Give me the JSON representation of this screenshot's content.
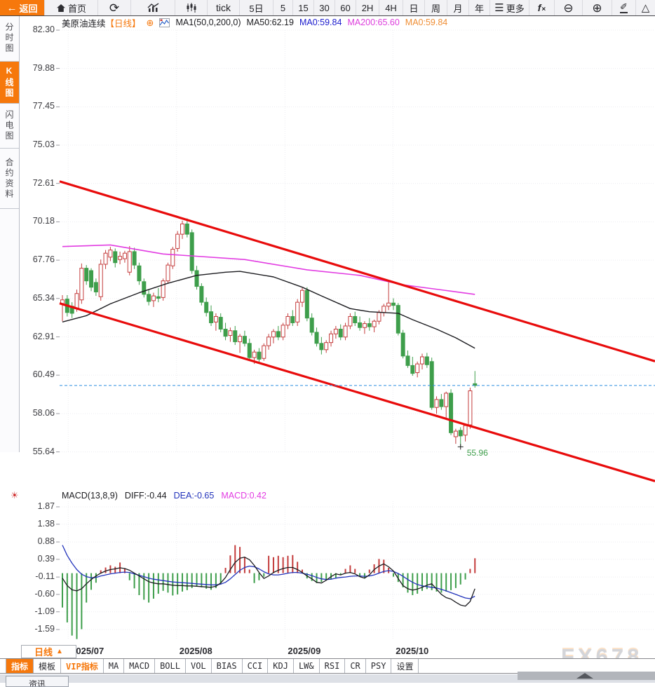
{
  "toolbar": {
    "items": [
      {
        "id": "back",
        "label": "返回"
      },
      {
        "id": "home",
        "label": "首页"
      },
      {
        "id": "refresh"
      },
      {
        "id": "line-chart"
      },
      {
        "id": "candle-chart"
      },
      {
        "id": "tick",
        "label": "tick"
      },
      {
        "id": "5d",
        "label": "5日"
      },
      {
        "id": "m5",
        "label": "5"
      },
      {
        "id": "m15",
        "label": "15"
      },
      {
        "id": "m30",
        "label": "30"
      },
      {
        "id": "m60",
        "label": "60"
      },
      {
        "id": "h2",
        "label": "2H"
      },
      {
        "id": "h4",
        "label": "4H"
      },
      {
        "id": "day",
        "label": "日"
      },
      {
        "id": "week",
        "label": "周"
      },
      {
        "id": "month",
        "label": "月"
      },
      {
        "id": "year",
        "label": "年"
      },
      {
        "id": "more",
        "label": "更多"
      },
      {
        "id": "fx",
        "label": "fx"
      },
      {
        "id": "zoom-out"
      },
      {
        "id": "zoom-in"
      },
      {
        "id": "draw"
      },
      {
        "id": "shapes"
      }
    ]
  },
  "sidebar": {
    "items": [
      {
        "label": "分时图",
        "selected": false
      },
      {
        "label": "K线图",
        "selected": true
      },
      {
        "label": "闪电图",
        "selected": false
      },
      {
        "label": "合约资料",
        "selected": false
      }
    ]
  },
  "header": {
    "symbol": "美原油连续",
    "period": "【日线】",
    "toggle_icon": "⊕",
    "ma_settings": "MA1(50,0,200,0)",
    "ma50": "MA50:62.19",
    "ma0_blue": "MA0:59.84",
    "ma200": "MA200:65.60",
    "ma0_orange": "MA0:59.84"
  },
  "macd_header": {
    "settings": "MACD(13,8,9)",
    "diff": "DIFF:-0.44",
    "dea": "DEA:-0.65",
    "macd": "MACD:0.42"
  },
  "footer": {
    "period_label": "日线",
    "period_arrow": "▲",
    "tabs": [
      {
        "label": "指标",
        "state": "selected"
      },
      {
        "label": "模板",
        "state": "normal"
      },
      {
        "label": "VIP指标",
        "state": "vip"
      },
      {
        "label": "MA",
        "state": "normal"
      },
      {
        "label": "MACD",
        "state": "normal"
      },
      {
        "label": "BOLL",
        "state": "normal"
      },
      {
        "label": "VOL",
        "state": "normal"
      },
      {
        "label": "BIAS",
        "state": "normal"
      },
      {
        "label": "CCI",
        "state": "normal"
      },
      {
        "label": "KDJ",
        "state": "normal"
      },
      {
        "label": "LW&",
        "state": "normal"
      },
      {
        "label": "RSI",
        "state": "normal"
      },
      {
        "label": "CR",
        "state": "normal"
      },
      {
        "label": "PSY",
        "state": "normal"
      },
      {
        "label": "设置",
        "state": "normal"
      }
    ],
    "partial_tab": "资讯",
    "watermark": "FX678"
  },
  "chart_data": {
    "type": "candlestick",
    "title": "美原油连续 日线 (US Crude Oil Continuous, Daily)",
    "price_axis_labels": [
      82.3,
      79.88,
      77.45,
      75.03,
      72.61,
      70.18,
      67.76,
      65.34,
      62.91,
      60.49,
      58.06,
      55.64
    ],
    "x_axis": [
      {
        "label": "2025/07",
        "i": 1.2
      },
      {
        "label": "2025/08",
        "i": 23.8
      },
      {
        "label": "2025/09",
        "i": 46.4
      },
      {
        "label": "2025/10",
        "i": 68.9
      }
    ],
    "candles": [
      [
        65.0,
        65.55,
        63.9,
        65.25
      ],
      [
        65.3,
        65.55,
        64.2,
        64.45
      ],
      [
        64.85,
        65.1,
        64.1,
        64.4
      ],
      [
        64.7,
        65.9,
        64.5,
        65.65
      ],
      [
        65.25,
        67.55,
        65.0,
        67.25
      ],
      [
        67.25,
        67.45,
        66.2,
        66.45
      ],
      [
        67.1,
        67.25,
        65.8,
        66.05
      ],
      [
        66.35,
        66.6,
        65.5,
        65.75
      ],
      [
        65.45,
        67.8,
        65.2,
        67.5
      ],
      [
        67.5,
        68.4,
        67.2,
        68.2
      ],
      [
        67.95,
        68.6,
        67.7,
        68.4
      ],
      [
        68.3,
        68.5,
        67.3,
        67.6
      ],
      [
        67.8,
        68.3,
        67.5,
        68.0
      ],
      [
        67.85,
        68.35,
        67.6,
        68.2
      ],
      [
        67.0,
        68.65,
        66.8,
        68.3
      ],
      [
        68.3,
        68.55,
        67.2,
        67.45
      ],
      [
        67.4,
        67.6,
        66.2,
        66.45
      ],
      [
        66.4,
        66.6,
        65.4,
        65.6
      ],
      [
        65.6,
        65.9,
        64.9,
        65.15
      ],
      [
        65.2,
        65.7,
        64.8,
        65.5
      ],
      [
        65.45,
        66.0,
        65.1,
        65.35
      ],
      [
        65.4,
        66.6,
        65.2,
        66.45
      ],
      [
        66.45,
        67.6,
        66.3,
        67.45
      ],
      [
        67.4,
        68.6,
        67.2,
        68.45
      ],
      [
        68.5,
        69.6,
        68.3,
        69.4
      ],
      [
        69.4,
        70.25,
        69.1,
        70.05
      ],
      [
        70.05,
        70.4,
        69.2,
        69.4
      ],
      [
        69.5,
        69.7,
        66.9,
        67.1
      ],
      [
        67.1,
        67.4,
        65.9,
        66.1
      ],
      [
        66.1,
        66.3,
        64.9,
        65.1
      ],
      [
        65.1,
        65.4,
        64.2,
        64.45
      ],
      [
        64.5,
        64.9,
        63.6,
        63.8
      ],
      [
        63.85,
        64.4,
        63.3,
        64.2
      ],
      [
        64.15,
        64.4,
        63.2,
        63.4
      ],
      [
        63.4,
        63.8,
        62.7,
        62.95
      ],
      [
        63.0,
        63.5,
        62.6,
        63.3
      ],
      [
        63.3,
        63.6,
        62.4,
        62.6
      ],
      [
        62.6,
        63.1,
        61.9,
        62.95
      ],
      [
        62.95,
        63.3,
        62.3,
        62.5
      ],
      [
        62.5,
        62.8,
        61.4,
        61.6
      ],
      [
        61.6,
        62.1,
        61.2,
        61.95
      ],
      [
        61.95,
        62.2,
        61.3,
        61.5
      ],
      [
        61.55,
        62.5,
        61.4,
        62.35
      ],
      [
        62.35,
        63.1,
        62.1,
        62.9
      ],
      [
        62.9,
        63.4,
        62.5,
        63.25
      ],
      [
        63.25,
        63.6,
        62.7,
        62.9
      ],
      [
        62.9,
        63.8,
        62.7,
        63.65
      ],
      [
        63.65,
        64.4,
        63.4,
        64.2
      ],
      [
        64.2,
        64.6,
        63.6,
        63.8
      ],
      [
        63.85,
        65.3,
        63.6,
        65.1
      ],
      [
        65.1,
        66.0,
        64.8,
        65.85
      ],
      [
        65.85,
        66.05,
        63.9,
        64.1
      ],
      [
        64.1,
        64.4,
        63.0,
        63.2
      ],
      [
        63.2,
        63.5,
        62.3,
        62.5
      ],
      [
        62.5,
        62.9,
        61.8,
        62.1
      ],
      [
        62.1,
        62.7,
        61.9,
        62.55
      ],
      [
        62.55,
        63.3,
        62.3,
        63.1
      ],
      [
        63.1,
        63.6,
        62.8,
        63.4
      ],
      [
        63.4,
        63.7,
        62.7,
        62.9
      ],
      [
        62.9,
        63.8,
        62.7,
        63.6
      ],
      [
        63.6,
        64.4,
        63.4,
        64.2
      ],
      [
        64.2,
        64.5,
        63.6,
        63.8
      ],
      [
        63.8,
        64.2,
        63.3,
        63.5
      ],
      [
        63.5,
        63.9,
        63.1,
        63.75
      ],
      [
        63.75,
        64.1,
        63.3,
        63.55
      ],
      [
        63.55,
        64.0,
        63.2,
        63.9
      ],
      [
        63.9,
        64.6,
        63.7,
        64.45
      ],
      [
        64.45,
        65.0,
        64.2,
        64.85
      ],
      [
        64.85,
        66.45,
        64.6,
        65.05
      ],
      [
        65.05,
        65.35,
        64.6,
        64.9
      ],
      [
        64.9,
        65.05,
        63.0,
        63.15
      ],
      [
        63.15,
        63.35,
        61.55,
        61.7
      ],
      [
        61.7,
        62.05,
        60.95,
        61.1
      ],
      [
        61.1,
        61.65,
        60.45,
        60.6
      ],
      [
        60.65,
        61.35,
        60.35,
        61.2
      ],
      [
        61.2,
        61.85,
        60.85,
        61.65
      ],
      [
        61.65,
        61.9,
        60.95,
        61.15
      ],
      [
        61.35,
        61.6,
        58.3,
        58.45
      ],
      [
        58.45,
        59.15,
        58.05,
        58.95
      ],
      [
        58.95,
        59.3,
        58.3,
        58.5
      ],
      [
        58.5,
        59.45,
        57.8,
        59.35
      ],
      [
        59.35,
        59.6,
        56.7,
        56.85
      ],
      [
        56.6,
        57.1,
        56.15,
        56.95
      ],
      [
        57.0,
        57.2,
        55.96,
        56.65
      ],
      [
        56.7,
        57.4,
        56.3,
        57.3
      ],
      [
        57.35,
        59.7,
        57.1,
        59.5
      ],
      [
        59.95,
        60.75,
        59.7,
        59.84
      ]
    ],
    "ma50_points": [
      [
        0,
        63.85
      ],
      [
        5,
        64.25
      ],
      [
        10,
        65.0
      ],
      [
        16,
        65.7
      ],
      [
        22,
        66.3
      ],
      [
        28,
        66.8
      ],
      [
        34,
        67.0
      ],
      [
        37,
        67.05
      ],
      [
        44,
        66.7
      ],
      [
        50,
        66.05
      ],
      [
        54,
        65.5
      ],
      [
        60,
        64.7
      ],
      [
        64,
        64.5
      ],
      [
        70,
        64.4
      ],
      [
        73,
        64.0
      ],
      [
        78,
        63.4
      ],
      [
        82,
        62.85
      ],
      [
        86,
        62.19
      ]
    ],
    "ma200_points": [
      [
        0,
        68.62
      ],
      [
        10,
        68.72
      ],
      [
        21,
        68.15
      ],
      [
        38,
        67.8
      ],
      [
        51,
        67.15
      ],
      [
        62,
        66.8
      ],
      [
        71,
        66.2
      ],
      [
        81,
        65.8
      ],
      [
        86,
        65.6
      ]
    ],
    "trend_channel": {
      "color": "#e80b0b",
      "upper": [
        72.74,
        61.37
      ],
      "lower": [
        65.03,
        53.79
      ]
    },
    "last_price_line": 59.84,
    "low_marker": {
      "i": 83,
      "price": 55.96,
      "label": "55.96"
    },
    "colors": {
      "up": "#c43c3c",
      "down": "#3e9e4b",
      "ma50": "#1b1b1f",
      "ma200": "#e23ce2",
      "dea": "#2233bb",
      "diff": "#1b1b1f",
      "last_price": "#2f8fe0"
    },
    "macd": {
      "axis_labels": [
        1.87,
        1.38,
        0.88,
        0.39,
        -0.11,
        -0.6,
        -1.09,
        -1.59
      ],
      "histogram": [
        -0.97,
        -1.39,
        -1.76,
        -1.86,
        -1.58,
        -0.83,
        -0.47,
        -0.27,
        0.08,
        0.16,
        0.22,
        0.18,
        0.3,
        0.12,
        -0.2,
        -0.43,
        -0.62,
        -0.75,
        -0.83,
        -0.72,
        -0.58,
        -0.5,
        -0.55,
        -0.63,
        -0.6,
        -0.52,
        -0.48,
        -0.42,
        -0.38,
        -0.4,
        -0.44,
        -0.47,
        -0.42,
        -0.3,
        0.15,
        0.5,
        0.79,
        0.74,
        0.46,
        0.1,
        -0.28,
        -0.2,
        -0.1,
        0.49,
        0.45,
        0.49,
        0.45,
        0.49,
        0.51,
        0.32,
        0.1,
        -0.15,
        -0.22,
        -0.28,
        -0.25,
        -0.2,
        -0.18,
        -0.15,
        -0.05,
        0.12,
        0.22,
        0.12,
        -0.1,
        -0.15,
        0.1,
        0.25,
        0.4,
        0.38,
        0.15,
        -0.1,
        -0.25,
        -0.4,
        -0.55,
        -0.62,
        -0.58,
        -0.5,
        -0.45,
        -0.48,
        -0.52,
        -0.55,
        -0.52,
        -0.48,
        -0.42,
        -0.32,
        -0.18,
        0.12,
        0.42
      ],
      "diff": [
        -0.14,
        -0.35,
        -0.47,
        -0.5,
        -0.44,
        -0.3,
        -0.18,
        -0.08,
        0.0,
        0.06,
        0.1,
        0.12,
        0.15,
        0.13,
        0.08,
        0.0,
        -0.08,
        -0.16,
        -0.24,
        -0.28,
        -0.3,
        -0.3,
        -0.32,
        -0.34,
        -0.35,
        -0.35,
        -0.36,
        -0.36,
        -0.37,
        -0.38,
        -0.39,
        -0.4,
        -0.37,
        -0.28,
        -0.12,
        0.1,
        0.3,
        0.42,
        0.45,
        0.38,
        0.22,
        0.02,
        -0.15,
        -0.08,
        0.02,
        0.08,
        0.13,
        0.16,
        0.16,
        0.1,
        0.02,
        -0.08,
        -0.16,
        -0.26,
        -0.28,
        -0.2,
        -0.1,
        -0.02,
        -0.05,
        0.0,
        0.02,
        -0.02,
        -0.1,
        -0.14,
        -0.05,
        0.1,
        0.2,
        0.26,
        0.18,
        0.06,
        -0.15,
        -0.35,
        -0.44,
        -0.48,
        -0.45,
        -0.4,
        -0.34,
        -0.3,
        -0.45,
        -0.6,
        -0.69,
        -0.73,
        -0.82,
        -0.9,
        -0.93,
        -0.8,
        -0.44
      ],
      "dea": [
        0.79,
        0.5,
        0.28,
        0.1,
        -0.03,
        -0.1,
        -0.13,
        -0.12,
        -0.08,
        -0.05,
        -0.02,
        0.0,
        0.02,
        0.03,
        0.02,
        -0.02,
        -0.06,
        -0.1,
        -0.14,
        -0.17,
        -0.19,
        -0.21,
        -0.23,
        -0.25,
        -0.26,
        -0.27,
        -0.28,
        -0.29,
        -0.3,
        -0.31,
        -0.32,
        -0.33,
        -0.33,
        -0.31,
        -0.26,
        -0.16,
        -0.04,
        0.08,
        0.16,
        0.2,
        0.18,
        0.12,
        0.04,
        -0.02,
        -0.05,
        -0.05,
        -0.03,
        0.0,
        0.02,
        0.02,
        0.0,
        -0.03,
        -0.07,
        -0.12,
        -0.16,
        -0.18,
        -0.17,
        -0.14,
        -0.12,
        -0.11,
        -0.09,
        -0.08,
        -0.08,
        -0.09,
        -0.08,
        -0.05,
        0.0,
        0.05,
        0.07,
        0.05,
        -0.01,
        -0.09,
        -0.18,
        -0.26,
        -0.32,
        -0.36,
        -0.38,
        -0.4,
        -0.42,
        -0.46,
        -0.5,
        -0.55,
        -0.6,
        -0.65,
        -0.7,
        -0.72,
        -0.65
      ]
    }
  }
}
